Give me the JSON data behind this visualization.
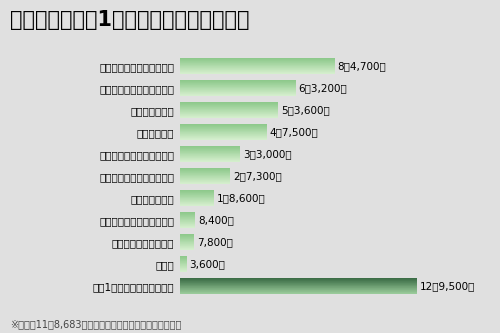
{
  "title": "市の支出を市民1人あたりに換算すると？",
  "categories": [
    "福祉サービスの提供などに",
    "道路や市街地の整備などに",
    "借入金の返済に",
    "教育の充実に",
    "コミュニティの振興などに",
    "保健医療やごみ処理などに",
    "防災対策などに",
    "農林水産業の振興のために",
    "商工業の振興のために",
    "その他",
    "市民1人当たりが納める市税"
  ],
  "values": [
    84700,
    63200,
    53600,
    47500,
    33000,
    27300,
    18600,
    8400,
    7800,
    3600,
    129500
  ],
  "labels": [
    "8万4,700円",
    "6万3,200円",
    "5万3,600円",
    "4万7,500円",
    "3万3,000円",
    "2万7,300円",
    "1万8,600円",
    "8,400円",
    "7,800円",
    "3,600円",
    "12万9,500円"
  ],
  "note": "※人口は11万8,683人（４月１日現在）で計算しています",
  "background_color": "#e0e0e0",
  "plot_bg_color": "#e0e0e0",
  "bar_color_normal_top": "#8cc88a",
  "bar_color_normal_bottom": "#d8f0d0",
  "bar_color_last_top": "#3a6b45",
  "bar_color_last_bottom": "#9ecf9e",
  "title_fontsize": 15,
  "cat_fontsize": 7.5,
  "label_fontsize": 7.5,
  "note_fontsize": 7,
  "max_value": 130000
}
